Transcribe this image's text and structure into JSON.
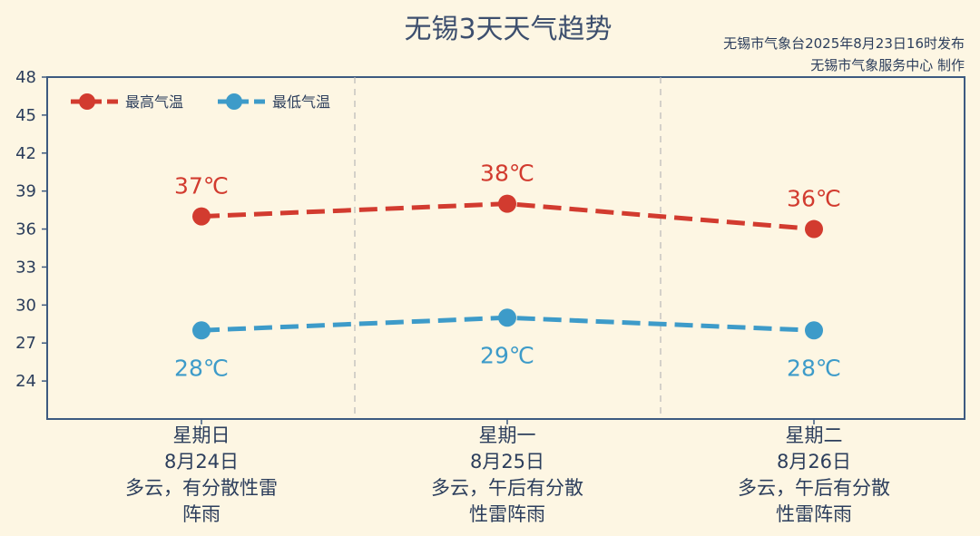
{
  "title": "无锡3天天气趋势",
  "source_line1": "无锡市气象台2025年8月23日16时发布",
  "source_line2": "无锡市气象服务中心  制作",
  "colors": {
    "high": "#d23b2f",
    "low": "#3d9bc9",
    "axis": "#3d5a80",
    "background": "#fdf6e3"
  },
  "chart_data": {
    "type": "line",
    "title": "无锡3天天气趋势",
    "ylim": [
      21,
      48
    ],
    "yticks": [
      24,
      27,
      30,
      33,
      36,
      39,
      42,
      45,
      48
    ],
    "categories": [
      {
        "day": "星期日",
        "date": "8月24日",
        "weather_line1": "多云，有分散性雷",
        "weather_line2": "阵雨"
      },
      {
        "day": "星期一",
        "date": "8月25日",
        "weather_line1": "多云，午后有分散",
        "weather_line2": "性雷阵雨"
      },
      {
        "day": "星期二",
        "date": "8月26日",
        "weather_line1": "多云，午后有分散",
        "weather_line2": "性雷阵雨"
      }
    ],
    "series": [
      {
        "name": "最高气温",
        "values": [
          37,
          38,
          36
        ],
        "labels": [
          "37℃",
          "38℃",
          "36℃"
        ]
      },
      {
        "name": "最低气温",
        "values": [
          28,
          29,
          28
        ],
        "labels": [
          "28℃",
          "29℃",
          "28℃"
        ]
      }
    ],
    "legend_position": "top-left",
    "grid": false
  }
}
